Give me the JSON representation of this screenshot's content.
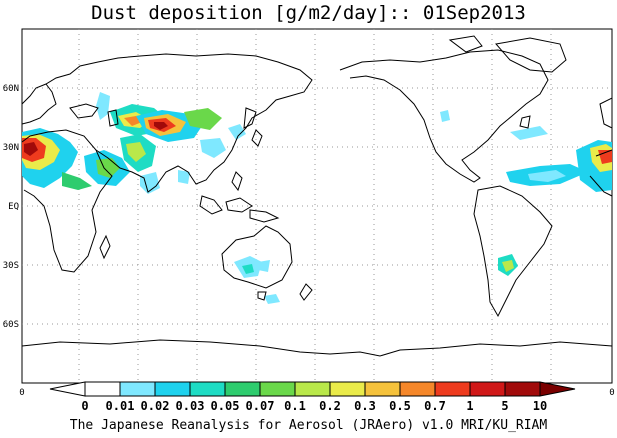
{
  "title": "Dust deposition [g/m2/day]:: 01Sep2013",
  "credit": "The Japanese Reanalysis for Aerosol (JRAero) v1.0 MRI/KU_RIAM",
  "map": {
    "lat_labels": [
      "60N",
      "30N",
      "EQ",
      "30S",
      "60S"
    ],
    "edge_labels": [
      "0",
      "0"
    ]
  },
  "colorbar": {
    "labels": [
      "0",
      "0.01",
      "0.02",
      "0.03",
      "0.05",
      "0.07",
      "0.1",
      "0.2",
      "0.3",
      "0.5",
      "0.7",
      "1",
      "5",
      "10"
    ],
    "colors": [
      "#ffffff",
      "#ffffff",
      "#7fe8ff",
      "#1fd2ee",
      "#1edcc4",
      "#2ecc6e",
      "#6ad84a",
      "#b9e84a",
      "#eaeb4a",
      "#f5c23c",
      "#f5872a",
      "#ee3b1e",
      "#d01818",
      "#a10a0a",
      "#7a0000"
    ]
  },
  "colors": {
    "coast": "#000000",
    "grid": "#999999"
  }
}
